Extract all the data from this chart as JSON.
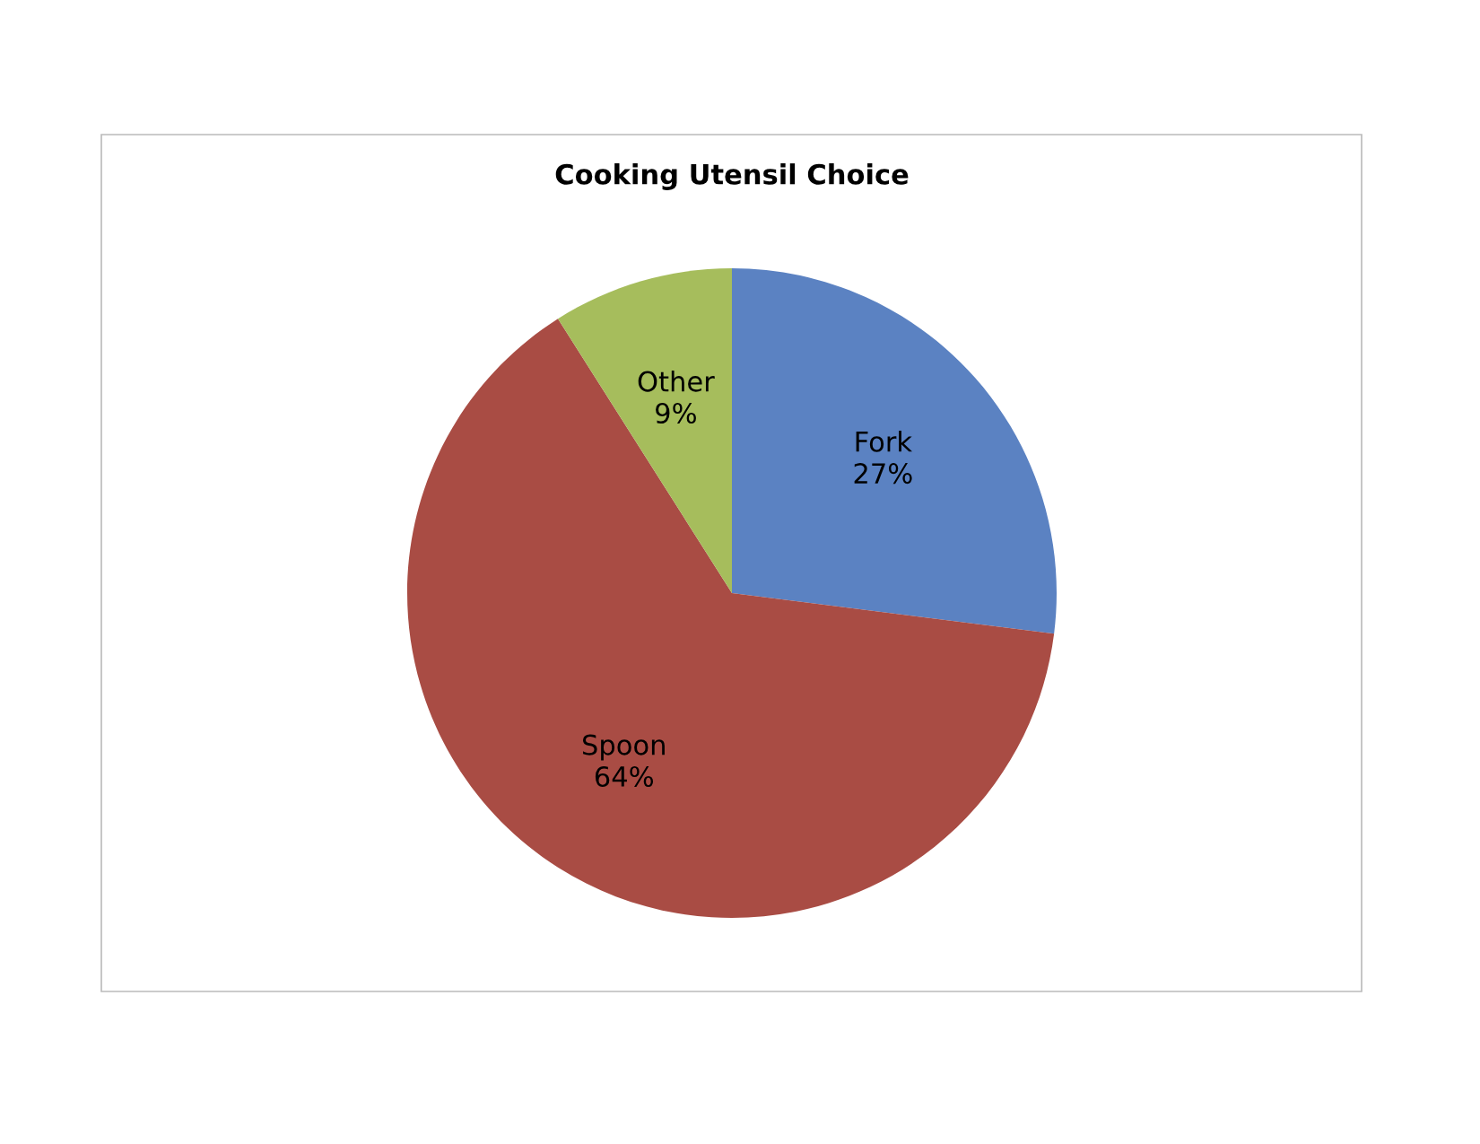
{
  "chart_data": {
    "type": "pie",
    "title": "Cooking Utensil Choice",
    "categories": [
      "Fork",
      "Spoon",
      "Other"
    ],
    "values": [
      27,
      64,
      9
    ],
    "value_labels": [
      "27%",
      "64%",
      "9%"
    ],
    "colors": [
      "#5b82c2",
      "#a94c44",
      "#a6bd5c"
    ]
  }
}
